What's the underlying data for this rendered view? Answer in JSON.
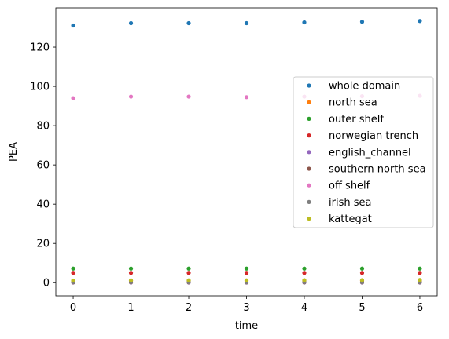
{
  "chart_data": {
    "type": "scatter",
    "xlabel": "time",
    "ylabel": "PEA",
    "xlim": [
      -0.3,
      6.3
    ],
    "ylim": [
      -6.7,
      140
    ],
    "xticks": [
      "0",
      "1",
      "2",
      "3",
      "4",
      "5",
      "6"
    ],
    "yticks": [
      "0",
      "20",
      "40",
      "60",
      "80",
      "100",
      "120"
    ],
    "grid": false,
    "legend_position": "center-right",
    "x": [
      0,
      1,
      2,
      3,
      4,
      5,
      6
    ],
    "series": [
      {
        "name": "whole domain",
        "color": "#1f77b4",
        "values": [
          131.0,
          132.2,
          132.2,
          132.2,
          132.6,
          132.9,
          133.3
        ]
      },
      {
        "name": "north sea",
        "color": "#ff7f0e",
        "values": [
          1.0,
          1.0,
          1.0,
          1.0,
          1.0,
          1.0,
          1.0
        ]
      },
      {
        "name": "outer shelf",
        "color": "#2ca02c",
        "values": [
          7.2,
          7.2,
          7.2,
          7.2,
          7.2,
          7.2,
          7.2
        ]
      },
      {
        "name": "norwegian trench",
        "color": "#d62728",
        "values": [
          5.0,
          5.0,
          5.0,
          5.0,
          5.0,
          5.0,
          5.0
        ]
      },
      {
        "name": "english_channel",
        "color": "#9467bd",
        "values": [
          0.1,
          0.1,
          0.1,
          0.1,
          0.1,
          0.1,
          0.1
        ]
      },
      {
        "name": "southern north sea",
        "color": "#8c564b",
        "values": [
          0.2,
          0.2,
          0.2,
          0.2,
          0.2,
          0.2,
          0.2
        ]
      },
      {
        "name": "off shelf",
        "color": "#e377c2",
        "values": [
          94.0,
          94.8,
          94.8,
          94.5,
          94.8,
          95.0,
          95.2
        ]
      },
      {
        "name": "irish sea",
        "color": "#7f7f7f",
        "values": [
          0.3,
          0.3,
          0.3,
          0.3,
          0.3,
          0.3,
          0.3
        ]
      },
      {
        "name": "kattegat",
        "color": "#bcbd22",
        "values": [
          1.1,
          1.2,
          1.2,
          1.2,
          1.3,
          1.3,
          1.4
        ]
      }
    ]
  }
}
